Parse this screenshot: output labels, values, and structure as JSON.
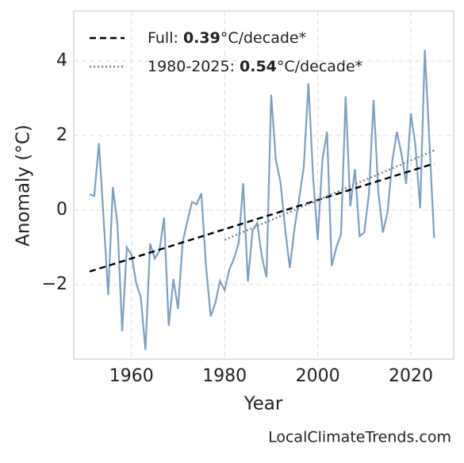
{
  "chart_data": {
    "type": "line",
    "xlabel": "Year",
    "ylabel": "Anomaly (°C)",
    "xlim": [
      1947.6,
      2029.2
    ],
    "ylim": [
      -4.0,
      5.34
    ],
    "xticks": [
      1960,
      1980,
      2000,
      2020
    ],
    "yticks": [
      {
        "value": -2,
        "label": "−2"
      },
      0,
      2,
      4
    ],
    "grid": true,
    "legend": "upper left",
    "series": [
      {
        "color": "#7f9fc0",
        "style": "solid",
        "x": [
          1951,
          1952,
          1953,
          1954,
          1955,
          1956,
          1957,
          1958,
          1959,
          1960,
          1961,
          1962,
          1963,
          1964,
          1965,
          1966,
          1967,
          1968,
          1969,
          1970,
          1971,
          1972,
          1973,
          1974,
          1975,
          1976,
          1977,
          1978,
          1979,
          1980,
          1981,
          1982,
          1983,
          1984,
          1985,
          1986,
          1987,
          1988,
          1989,
          1990,
          1991,
          1992,
          1993,
          1994,
          1995,
          1996,
          1997,
          1998,
          1999,
          2000,
          2001,
          2002,
          2003,
          2004,
          2005,
          2006,
          2007,
          2008,
          2009,
          2010,
          2011,
          2012,
          2013,
          2014,
          2015,
          2016,
          2017,
          2018,
          2019,
          2020,
          2021,
          2022,
          2023,
          2024,
          2025
        ],
        "values": [
          0.42,
          0.38,
          1.8,
          -0.2,
          -2.28,
          0.62,
          -0.4,
          -3.25,
          -1.0,
          -1.2,
          -1.95,
          -2.35,
          -3.75,
          -0.9,
          -1.3,
          -1.1,
          -0.2,
          -3.1,
          -1.85,
          -2.65,
          -0.85,
          -0.3,
          0.22,
          0.15,
          0.45,
          -1.5,
          -2.85,
          -2.5,
          -1.9,
          -2.15,
          -1.6,
          -1.3,
          -0.9,
          0.72,
          -1.92,
          -0.55,
          -0.35,
          -1.25,
          -1.8,
          3.1,
          1.35,
          0.75,
          -0.5,
          -1.55,
          -0.5,
          0.3,
          1.15,
          3.4,
          0.9,
          -0.8,
          1.35,
          2.1,
          -1.5,
          -1.0,
          -0.65,
          3.05,
          0.1,
          1.1,
          -0.7,
          -0.6,
          0.45,
          2.95,
          0.5,
          -0.6,
          -0.05,
          1.3,
          2.1,
          1.5,
          0.7,
          2.6,
          1.7,
          0.05,
          4.3,
          1.8,
          -0.75
        ]
      },
      {
        "color": "#000000",
        "style": "dashed",
        "label_parts": [
          "Full: ",
          "0.39",
          "°C/decade*"
        ],
        "x": [
          1951,
          2025
        ],
        "values": [
          -1.65,
          1.25
        ]
      },
      {
        "color": "#808080",
        "style": "dotted",
        "label_parts": [
          "1980-2025: ",
          "0.54",
          "°C/decade*"
        ],
        "x": [
          1980,
          2025
        ],
        "values": [
          -0.8,
          1.6
        ]
      }
    ],
    "source": "LocalClimateTrends.com"
  }
}
